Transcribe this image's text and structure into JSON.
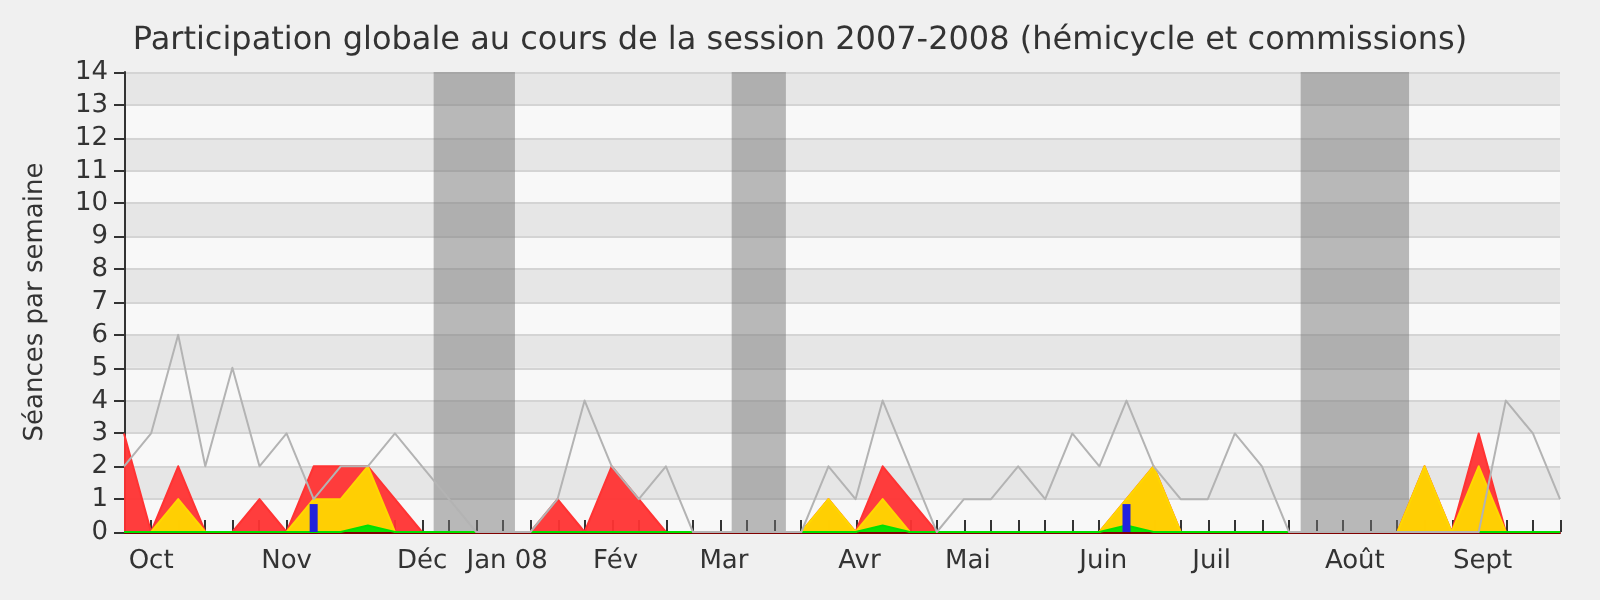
{
  "chart_data": {
    "type": "area",
    "title": "Participation globale au cours de la session 2007-2008 (hémicycle et commissions)",
    "ylabel": "Séances par semaine",
    "x": [
      "2007-10-01",
      "2007-10-08",
      "2007-10-15",
      "2007-10-22",
      "2007-10-29",
      "2007-11-05",
      "2007-11-12",
      "2007-11-19",
      "2007-11-26",
      "2007-12-03",
      "2007-12-10",
      "2007-12-17",
      "2007-12-24",
      "2007-12-31",
      "2008-01-07",
      "2008-01-14",
      "2008-01-21",
      "2008-01-28",
      "2008-02-04",
      "2008-02-11",
      "2008-02-18",
      "2008-02-25",
      "2008-03-03",
      "2008-03-10",
      "2008-03-17",
      "2008-03-24",
      "2008-03-31",
      "2008-04-07",
      "2008-04-14",
      "2008-04-21",
      "2008-04-28",
      "2008-05-05",
      "2008-05-12",
      "2008-05-19",
      "2008-05-26",
      "2008-06-02",
      "2008-06-09",
      "2008-06-16",
      "2008-06-23",
      "2008-06-30",
      "2008-07-07",
      "2008-07-14",
      "2008-07-21",
      "2008-07-28",
      "2008-08-04",
      "2008-08-11",
      "2008-08-18",
      "2008-08-25",
      "2008-09-01",
      "2008-09-08",
      "2008-09-15",
      "2008-09-22",
      "2008-09-29",
      "2008-10-06"
    ],
    "series": [
      {
        "color": "#ff3333",
        "values": [
          3,
          0,
          2,
          0,
          0,
          1,
          0,
          2,
          2,
          2,
          1,
          0,
          0,
          0,
          0,
          0,
          1,
          0,
          2,
          1,
          0,
          0,
          0,
          0,
          0,
          0,
          1,
          0,
          2,
          1,
          0,
          0,
          0,
          0,
          0,
          0,
          0,
          1,
          2,
          0,
          0,
          0,
          0,
          0,
          0,
          0,
          0,
          0,
          2,
          0,
          3,
          0,
          0,
          0
        ]
      },
      {
        "color": "#ffd700",
        "values": [
          0,
          0,
          1,
          0,
          0,
          0,
          0,
          1,
          1,
          2,
          0,
          0,
          0,
          0,
          0,
          0,
          0,
          0,
          0,
          0,
          0,
          0,
          0,
          0,
          0,
          0,
          1,
          0,
          1,
          0,
          0,
          0,
          0,
          0,
          0,
          0,
          0,
          1,
          2,
          0,
          0,
          0,
          0,
          0,
          0,
          0,
          0,
          0,
          2,
          0,
          2,
          0,
          0,
          0
        ]
      },
      {
        "color": "#00e000",
        "values": [
          0,
          0,
          0,
          0,
          0,
          0,
          0,
          0,
          0,
          0.2,
          0,
          0,
          0,
          0,
          0,
          0,
          0,
          0,
          0,
          0,
          0,
          0,
          0,
          0,
          0,
          0,
          0,
          0,
          0.2,
          0,
          0,
          0,
          0,
          0,
          0,
          0,
          0,
          0.2,
          0,
          0,
          0,
          0,
          0,
          0,
          0,
          0,
          0,
          0,
          0,
          0,
          0,
          0,
          0,
          0
        ]
      },
      {
        "type": "line",
        "color": "#b3b3b3",
        "values": [
          2,
          3,
          6,
          2,
          5,
          2,
          3,
          1,
          2,
          2,
          3,
          2,
          1,
          0,
          0,
          0,
          1,
          4,
          2,
          1,
          2,
          0,
          0,
          0,
          0,
          0,
          2,
          1,
          4,
          2,
          0,
          1,
          1,
          2,
          1,
          3,
          2,
          4,
          2,
          1,
          1,
          3,
          2,
          0,
          0,
          0,
          0,
          0,
          0,
          0,
          0,
          4,
          3,
          1
        ]
      },
      {
        "type": "bar",
        "color": "#2222dd",
        "x": [
          "2007-11-19",
          "2008-06-16"
        ],
        "values": [
          0.85,
          0.85
        ]
      }
    ],
    "xlim": [
      "2007-10-01",
      "2008-10-06"
    ],
    "xticks": [
      {
        "value": "2007-10-01",
        "label": null
      },
      {
        "value": "2007-10-08",
        "label": null
      },
      {
        "value": "2007-10-15",
        "label": null
      },
      {
        "value": "2007-10-22",
        "label": null
      },
      {
        "value": "2007-10-29",
        "label": null
      },
      {
        "value": "2007-11-05",
        "label": null
      },
      {
        "value": "2007-11-12",
        "label": null
      },
      {
        "value": "2007-11-19",
        "label": null
      },
      {
        "value": "2007-11-26",
        "label": null
      },
      {
        "value": "2007-12-03",
        "label": null
      },
      {
        "value": "2007-12-10",
        "label": null
      },
      {
        "value": "2007-12-17",
        "label": null
      },
      {
        "value": "2007-12-24",
        "label": null
      },
      {
        "value": "2007-12-31",
        "label": null
      },
      {
        "value": "2008-01-07",
        "label": null
      },
      {
        "value": "2008-01-14",
        "label": null
      },
      {
        "value": "2008-01-21",
        "label": null
      },
      {
        "value": "2008-01-28",
        "label": null
      },
      {
        "value": "2008-02-04",
        "label": null
      },
      {
        "value": "2008-02-11",
        "label": null
      },
      {
        "value": "2008-02-18",
        "label": null
      },
      {
        "value": "2008-02-25",
        "label": null
      },
      {
        "value": "2008-03-03",
        "label": null
      },
      {
        "value": "2008-03-10",
        "label": null
      },
      {
        "value": "2008-03-17",
        "label": null
      },
      {
        "value": "2008-03-24",
        "label": null
      },
      {
        "value": "2008-03-31",
        "label": null
      },
      {
        "value": "2008-04-07",
        "label": null
      },
      {
        "value": "2008-04-14",
        "label": null
      },
      {
        "value": "2008-04-21",
        "label": null
      },
      {
        "value": "2008-04-28",
        "label": null
      },
      {
        "value": "2008-05-05",
        "label": null
      },
      {
        "value": "2008-05-12",
        "label": null
      },
      {
        "value": "2008-05-19",
        "label": null
      },
      {
        "value": "2008-05-26",
        "label": null
      },
      {
        "value": "2008-06-02",
        "label": null
      },
      {
        "value": "2008-06-09",
        "label": null
      },
      {
        "value": "2008-06-16",
        "label": null
      },
      {
        "value": "2008-06-23",
        "label": null
      },
      {
        "value": "2008-06-30",
        "label": null
      },
      {
        "value": "2008-07-07",
        "label": null
      },
      {
        "value": "2008-07-14",
        "label": null
      },
      {
        "value": "2008-07-21",
        "label": null
      },
      {
        "value": "2008-07-28",
        "label": null
      },
      {
        "value": "2008-08-04",
        "label": null
      },
      {
        "value": "2008-08-11",
        "label": null
      },
      {
        "value": "2008-08-18",
        "label": null
      },
      {
        "value": "2008-08-25",
        "label": null
      },
      {
        "value": "2008-09-01",
        "label": null
      },
      {
        "value": "2008-09-08",
        "label": null
      },
      {
        "value": "2008-09-15",
        "label": null
      },
      {
        "value": "2008-09-22",
        "label": null
      },
      {
        "value": "2008-09-29",
        "label": null
      },
      {
        "value": "2008-10-06",
        "label": null
      },
      {
        "value": "2007-10-08",
        "label": "Oct"
      },
      {
        "value": "2007-11-12",
        "label": "Nov"
      },
      {
        "value": "2007-12-17",
        "label": "Déc"
      },
      {
        "value": "2008-01-08",
        "label": "Jan 08"
      },
      {
        "value": "2008-02-05",
        "label": "Fév"
      },
      {
        "value": "2008-03-04",
        "label": "Mar"
      },
      {
        "value": "2008-04-08",
        "label": "Avr"
      },
      {
        "value": "2008-05-06",
        "label": "Mai"
      },
      {
        "value": "2008-06-10",
        "label": "Juin"
      },
      {
        "value": "2008-07-08",
        "label": "Juil"
      },
      {
        "value": "2008-08-14",
        "label": "Août"
      },
      {
        "value": "2008-09-16",
        "label": "Sept"
      }
    ],
    "ylim": [
      0,
      14
    ],
    "yticks": [
      0,
      1,
      2,
      3,
      4,
      5,
      6,
      7,
      8,
      9,
      10,
      11,
      12,
      13,
      14
    ],
    "bands": [
      {
        "axis": "x",
        "from": "2007-12-20",
        "to": "2008-01-10",
        "color": "#777777"
      },
      {
        "axis": "x",
        "from": "2008-03-06",
        "to": "2008-03-20",
        "color": "#777777"
      },
      {
        "axis": "x",
        "from": "2008-07-31",
        "to": "2008-08-28",
        "color": "#777777"
      }
    ],
    "grid": "y",
    "marker": "none",
    "line_style": "solid"
  }
}
